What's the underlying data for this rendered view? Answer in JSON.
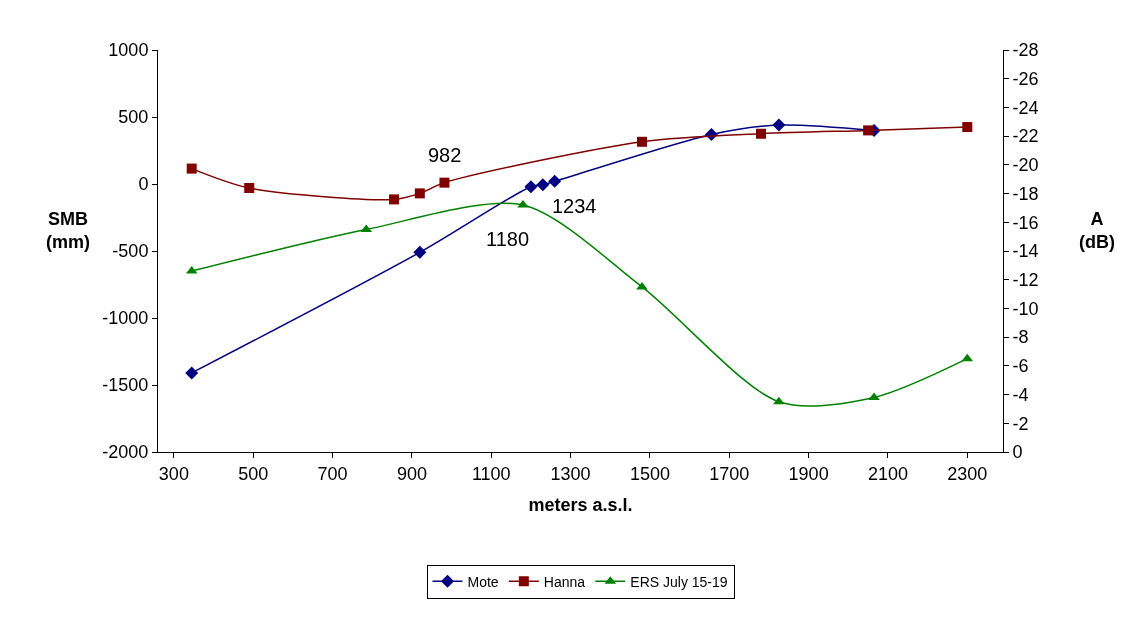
{
  "chart_data": {
    "type": "line",
    "xlabel": "meters a.s.l.",
    "ylabel": "SMB\n(mm)",
    "y2label": "A\n(dB)",
    "xlim": [
      260,
      2390
    ],
    "xticks": [
      300,
      500,
      700,
      900,
      1100,
      1300,
      1500,
      1700,
      1900,
      2100,
      2300
    ],
    "ylim": [
      -2000,
      1000
    ],
    "yticks": [
      -2000,
      -1500,
      -1000,
      -500,
      0,
      500,
      1000
    ],
    "y2lim": [
      0,
      -28
    ],
    "y2ticks": [
      0,
      -2,
      -4,
      -6,
      -8,
      -10,
      -12,
      -14,
      -16,
      -18,
      -20,
      -22,
      -24,
      -26,
      -28
    ],
    "legend": "bottom",
    "line_style": "solid",
    "series": [
      {
        "name": "Mote",
        "color": "#000080",
        "marker": "diamond",
        "x": [
          345,
          920,
          1200,
          1230,
          1260,
          1655,
          1825,
          2065
        ],
        "values": [
          -1410,
          -510,
          -20,
          -5,
          20,
          370,
          440,
          400
        ]
      },
      {
        "name": "Hanna",
        "color": "#800000",
        "marker": "square",
        "x": [
          345,
          490,
          855,
          920,
          982,
          1480,
          1780,
          2050,
          2300
        ],
        "values": [
          115,
          -30,
          -115,
          -70,
          10,
          315,
          375,
          400,
          425
        ]
      },
      {
        "name": "ERS July 15-19",
        "color": "#008000",
        "marker": "triangle",
        "axis": "y2",
        "x": [
          345,
          785,
          1180,
          1480,
          1825,
          2065,
          2300
        ],
        "values": [
          -12.6,
          -15.5,
          -17.2,
          -11.5,
          -3.5,
          -3.8,
          -6.5
        ]
      }
    ],
    "annotations": [
      {
        "text": "982",
        "x": 982,
        "y": 10
      },
      {
        "text": "1180",
        "x": 1180,
        "y": -150
      },
      {
        "text": "1234",
        "x": 1234,
        "y": 0
      }
    ]
  }
}
